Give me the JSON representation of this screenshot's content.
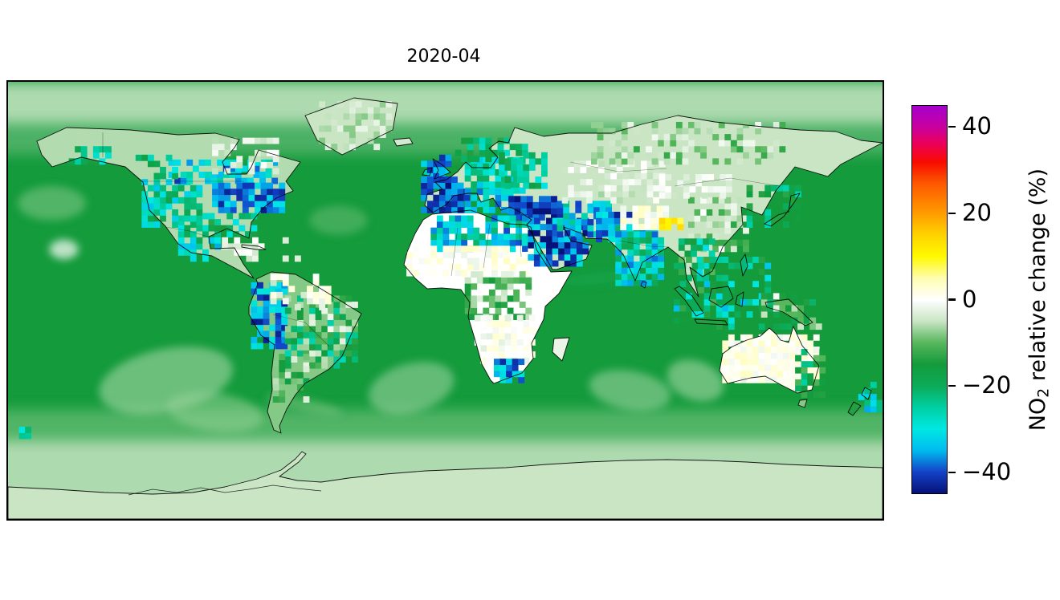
{
  "figure": {
    "background": "#ffffff",
    "frame_color": "#000000"
  },
  "chart_data": {
    "type": "heatmap",
    "subtype": "global-map",
    "title": "2020-04",
    "projection": {
      "kind": "equirectangular",
      "lon_range": [
        -180,
        180
      ],
      "lat_range": [
        -90,
        90
      ]
    },
    "grid_resolution_deg": 2.5,
    "colorbar": {
      "label_full": "NO2 relative change (%)",
      "label_parts": {
        "pre": "NO",
        "sub": "2",
        "post": " relative change (%)"
      },
      "tick_values": [
        40,
        20,
        0,
        -20,
        -40
      ],
      "tick_labels": [
        "40",
        "20",
        "0",
        "−20",
        "−40"
      ],
      "vmin": -45,
      "vmax": 45,
      "stops": [
        {
          "v": 45,
          "c": "#a600ce"
        },
        {
          "v": 40,
          "c": "#c9009d"
        },
        {
          "v": 36,
          "c": "#ed0055"
        },
        {
          "v": 32,
          "c": "#f80b00"
        },
        {
          "v": 27,
          "c": "#fd5800"
        },
        {
          "v": 20,
          "c": "#ff9c00"
        },
        {
          "v": 15,
          "c": "#ffd300"
        },
        {
          "v": 10,
          "c": "#fff900"
        },
        {
          "v": 5,
          "c": "#fffdb0"
        },
        {
          "v": 0,
          "c": "#ffffff"
        },
        {
          "v": -5,
          "c": "#c9e5c4"
        },
        {
          "v": -10,
          "c": "#57b75c"
        },
        {
          "v": -15,
          "c": "#149b3c"
        },
        {
          "v": -20,
          "c": "#0cab58"
        },
        {
          "v": -25,
          "c": "#00cfa2"
        },
        {
          "v": -30,
          "c": "#00e8e2"
        },
        {
          "v": -35,
          "c": "#00bcef"
        },
        {
          "v": -40,
          "c": "#1343c8"
        },
        {
          "v": -45,
          "c": "#071278"
        }
      ]
    },
    "ocean_mean_value": -15,
    "latitude_bands": [
      {
        "name": "arctic",
        "lat": [
          73,
          90
        ],
        "value": -5,
        "opacity": 0.85
      },
      {
        "name": "subarctic-fade",
        "lat": [
          60,
          73
        ],
        "value": -5,
        "opacity": 0.3
      },
      {
        "name": "subantarctic",
        "lat": [
          -58,
          -45
        ],
        "value": -7,
        "opacity": 0.45
      },
      {
        "name": "antarctic",
        "lat": [
          -90,
          -58
        ],
        "value": -5,
        "opacity": 0.85
      }
    ],
    "land_base": [
      {
        "id": "north-america",
        "value": -6
      },
      {
        "id": "greenland",
        "value": -5
      },
      {
        "id": "south-america",
        "value": -8
      },
      {
        "id": "africa",
        "value": 0
      },
      {
        "id": "madagascar",
        "value": -2
      },
      {
        "id": "eurasia",
        "value": -5
      },
      {
        "id": "uk",
        "value": -32
      },
      {
        "id": "ireland",
        "value": -26
      },
      {
        "id": "iceland",
        "value": -4
      },
      {
        "id": "japan",
        "value": -14
      },
      {
        "id": "borneo",
        "value": -18
      },
      {
        "id": "sumatra",
        "value": -20
      },
      {
        "id": "java",
        "value": -14
      },
      {
        "id": "sulawesi",
        "value": -18
      },
      {
        "id": "philippines",
        "value": -22
      },
      {
        "id": "new-guinea",
        "value": -10
      },
      {
        "id": "australia",
        "value": 1
      },
      {
        "id": "tasmania",
        "value": -8
      },
      {
        "id": "nz-north",
        "value": -32
      },
      {
        "id": "nz-south",
        "value": -14
      },
      {
        "id": "cuba",
        "value": -3
      },
      {
        "id": "sri-lanka",
        "value": -24
      },
      {
        "id": "antarctica",
        "value": -5
      }
    ],
    "regions": [
      {
        "name": "us-west",
        "lon": [
          -125,
          -100
        ],
        "lat": [
          30,
          50
        ],
        "value": -26,
        "density": 0.75,
        "jitter": 9
      },
      {
        "name": "canada-south-band",
        "lon": [
          -114,
          -70
        ],
        "lat": [
          48,
          56
        ],
        "value": -33,
        "density": 0.6,
        "jitter": 8
      },
      {
        "name": "us-northeast",
        "lon": [
          -96,
          -66
        ],
        "lat": [
          36,
          48
        ],
        "value": -37,
        "density": 0.85,
        "jitter": 7
      },
      {
        "name": "us-south",
        "lon": [
          -100,
          -78
        ],
        "lat": [
          26,
          36
        ],
        "value": -22,
        "density": 0.6,
        "jitter": 9
      },
      {
        "name": "alaska-coast",
        "lon": [
          -155,
          -138
        ],
        "lat": [
          56,
          63
        ],
        "value": -24,
        "density": 0.5,
        "jitter": 7
      },
      {
        "name": "canada-west",
        "lon": [
          -130,
          -112
        ],
        "lat": [
          50,
          60
        ],
        "value": -22,
        "density": 0.45,
        "jitter": 8
      },
      {
        "name": "hudson-pale",
        "lon": [
          -96,
          -70
        ],
        "lat": [
          52,
          66
        ],
        "value": -3,
        "density": 0.55,
        "jitter": 3
      },
      {
        "name": "mexico",
        "lon": [
          -110,
          -94
        ],
        "lat": [
          16,
          30
        ],
        "value": -27,
        "density": 0.6,
        "jitter": 9
      },
      {
        "name": "caribbean-pale",
        "lon": [
          -92,
          -60
        ],
        "lat": [
          16,
          26
        ],
        "value": -2,
        "density": 0.35,
        "jitter": 3
      },
      {
        "name": "andes",
        "lon": [
          -80,
          -66
        ],
        "lat": [
          -20,
          7
        ],
        "value": -36,
        "density": 0.8,
        "jitter": 8
      },
      {
        "name": "brazil-mix",
        "lon": [
          -66,
          -38
        ],
        "lat": [
          -28,
          2
        ],
        "value": -14,
        "density": 0.7,
        "jitter": 13
      },
      {
        "name": "guyana-pale",
        "lon": [
          -72,
          -48
        ],
        "lat": [
          -4,
          9
        ],
        "value": -1,
        "density": 0.5,
        "jitter": 4
      },
      {
        "name": "argentina-mix",
        "lon": [
          -71,
          -58
        ],
        "lat": [
          -42,
          -22
        ],
        "value": -11,
        "density": 0.5,
        "jitter": 8
      },
      {
        "name": "uk-ireland",
        "lon": [
          -10,
          2
        ],
        "lat": [
          50,
          60
        ],
        "value": -38,
        "density": 0.8,
        "jitter": 6
      },
      {
        "name": "france-iberia",
        "lon": [
          -10,
          8
        ],
        "lat": [
          36,
          51
        ],
        "value": -40,
        "density": 0.9,
        "jitter": 5
      },
      {
        "name": "central-europe",
        "lon": [
          8,
          32
        ],
        "lat": [
          44,
          57
        ],
        "value": -27,
        "density": 0.85,
        "jitter": 7
      },
      {
        "name": "italy-balkans",
        "lon": [
          8,
          28
        ],
        "lat": [
          36,
          44
        ],
        "value": -33,
        "density": 0.8,
        "jitter": 7
      },
      {
        "name": "scandinavia",
        "lon": [
          4,
          32
        ],
        "lat": [
          57,
          67
        ],
        "value": -21,
        "density": 0.55,
        "jitter": 8
      },
      {
        "name": "east-europe",
        "lon": [
          22,
          42
        ],
        "lat": [
          46,
          60
        ],
        "value": -23,
        "density": 0.65,
        "jitter": 8
      },
      {
        "name": "turkey-mideast",
        "lon": [
          26,
          48
        ],
        "lat": [
          33,
          42
        ],
        "value": -41,
        "density": 0.9,
        "jitter": 5
      },
      {
        "name": "north-africa-band",
        "lon": [
          -6,
          34
        ],
        "lat": [
          20,
          34
        ],
        "value": -30,
        "density": 0.7,
        "jitter": 10
      },
      {
        "name": "sahara-pale",
        "lon": [
          -16,
          36
        ],
        "lat": [
          10,
          21
        ],
        "value": 1,
        "density": 0.75,
        "jitter": 3
      },
      {
        "name": "arabia",
        "lon": [
          34,
          58
        ],
        "lat": [
          14,
          33
        ],
        "value": -38,
        "density": 0.85,
        "jitter": 8
      },
      {
        "name": "iran-stans",
        "lon": [
          46,
          68
        ],
        "lat": [
          26,
          40
        ],
        "value": -32,
        "density": 0.75,
        "jitter": 9
      },
      {
        "name": "central-africa-green",
        "lon": [
          8,
          34
        ],
        "lat": [
          -8,
          10
        ],
        "value": -9,
        "density": 0.55,
        "jitter": 7
      },
      {
        "name": "southern-africa-pale",
        "lon": [
          12,
          36
        ],
        "lat": [
          -26,
          -8
        ],
        "value": 0,
        "density": 0.6,
        "jitter": 3
      },
      {
        "name": "sa-highveld",
        "lon": [
          20,
          32
        ],
        "lat": [
          -34,
          -24
        ],
        "value": -35,
        "density": 0.8,
        "jitter": 8
      },
      {
        "name": "central-asia-pale",
        "lon": [
          48,
          90
        ],
        "lat": [
          40,
          56
        ],
        "value": -3,
        "density": 0.55,
        "jitter": 4
      },
      {
        "name": "siberia-mix",
        "lon": [
          60,
          140
        ],
        "lat": [
          56,
          72
        ],
        "value": -7,
        "density": 0.45,
        "jitter": 6
      },
      {
        "name": "pak-nw-india",
        "lon": [
          62,
          76
        ],
        "lat": [
          24,
          36
        ],
        "value": -36,
        "density": 0.8,
        "jitter": 8
      },
      {
        "name": "india",
        "lon": [
          70,
          90
        ],
        "lat": [
          6,
          30
        ],
        "value": -29,
        "density": 0.85,
        "jitter": 10
      },
      {
        "name": "tibet-pale",
        "lon": [
          72,
          92
        ],
        "lat": [
          29,
          38
        ],
        "value": 1,
        "density": 0.7,
        "jitter": 3
      },
      {
        "name": "tibet-east-yellow-spot",
        "lon": [
          88,
          98
        ],
        "lat": [
          29,
          34
        ],
        "value": 11,
        "density": 0.9,
        "jitter": 4
      },
      {
        "name": "china-east",
        "lon": [
          100,
          124
        ],
        "lat": [
          20,
          42
        ],
        "value": -7,
        "density": 0.55,
        "jitter": 7
      },
      {
        "name": "mongolia-pale",
        "lon": [
          88,
          118
        ],
        "lat": [
          42,
          52
        ],
        "value": -2,
        "density": 0.6,
        "jitter": 3
      },
      {
        "name": "korea-japan",
        "lon": [
          124,
          146
        ],
        "lat": [
          30,
          46
        ],
        "value": -19,
        "density": 0.45,
        "jitter": 9
      },
      {
        "name": "se-asia",
        "lon": [
          96,
          110
        ],
        "lat": [
          8,
          24
        ],
        "value": -21,
        "density": 0.55,
        "jitter": 11
      },
      {
        "name": "indonesia-philippines",
        "lon": [
          94,
          134
        ],
        "lat": [
          -12,
          18
        ],
        "value": -23,
        "density": 0.4,
        "jitter": 12
      },
      {
        "name": "new-guinea-mix",
        "lon": [
          130,
          154
        ],
        "lat": [
          -12,
          2
        ],
        "value": -12,
        "density": 0.45,
        "jitter": 11
      },
      {
        "name": "australia-pale",
        "lon": [
          114,
          152
        ],
        "lat": [
          -34,
          -14
        ],
        "value": 1,
        "density": 0.75,
        "jitter": 3
      },
      {
        "name": "australia-east",
        "lon": [
          144,
          156
        ],
        "lat": [
          -40,
          -22
        ],
        "value": -17,
        "density": 0.45,
        "jitter": 9
      },
      {
        "name": "new-zealand",
        "lon": [
          170,
          180
        ],
        "lat": [
          -46,
          -34
        ],
        "value": -30,
        "density": 0.55,
        "jitter": 9
      },
      {
        "name": "greenland-pale",
        "lon": [
          -52,
          -24
        ],
        "lat": [
          62,
          82
        ],
        "value": -5,
        "density": 0.45,
        "jitter": 3
      },
      {
        "name": "south-pacific-spot",
        "lon": [
          -178,
          -172
        ],
        "lat": [
          -57,
          -52
        ],
        "value": -24,
        "density": 0.6,
        "jitter": 6
      }
    ],
    "ocean_features": [
      {
        "name": "south-pacific-pale",
        "lon": -115,
        "lat": -33,
        "rx": 28,
        "ry": 13,
        "value": -6,
        "opacity": 0.55,
        "rot": -12
      },
      {
        "name": "south-pacific-pale-2",
        "lon": -95,
        "lat": -46,
        "rx": 20,
        "ry": 8,
        "value": -7,
        "opacity": 0.5,
        "rot": 8
      },
      {
        "name": "south-atlantic-pale",
        "lon": -14,
        "lat": -36,
        "rx": 18,
        "ry": 10,
        "value": -6,
        "opacity": 0.5,
        "rot": -15
      },
      {
        "name": "indian-ocean-pale",
        "lon": 76,
        "lat": -37,
        "rx": 17,
        "ry": 8,
        "value": -6,
        "opacity": 0.5,
        "rot": 10
      },
      {
        "name": "west-australia-pale",
        "lon": 103,
        "lat": -33,
        "rx": 12,
        "ry": 8,
        "value": -6,
        "opacity": 0.55,
        "rot": 20
      },
      {
        "name": "ne-pacific-pale",
        "lon": -162,
        "lat": 40,
        "rx": 14,
        "ry": 7,
        "value": -7,
        "opacity": 0.45,
        "rot": 0
      },
      {
        "name": "hawaii-pale",
        "lon": -157,
        "lat": 21,
        "rx": 6,
        "ry": 4,
        "value": -1,
        "opacity": 0.75,
        "rot": 0
      },
      {
        "name": "north-atlantic-pale",
        "lon": -44,
        "lat": 33,
        "rx": 12,
        "ry": 6,
        "value": -8,
        "opacity": 0.4,
        "rot": 0
      },
      {
        "name": "arabian-sea-lane",
        "lon": 62,
        "lat": 9,
        "rx": 14,
        "ry": 2.5,
        "value": -19,
        "opacity": 0.5,
        "rot": -6
      },
      {
        "name": "south-atlantic-lane",
        "lon": -58,
        "lat": -43,
        "rx": 16,
        "ry": 2.5,
        "value": -8,
        "opacity": 0.5,
        "rot": 12
      }
    ]
  }
}
